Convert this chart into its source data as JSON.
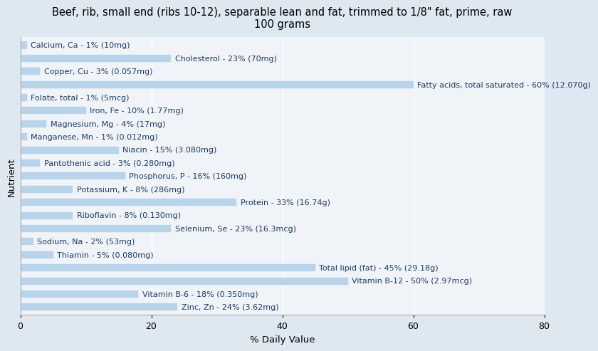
{
  "title": "Beef, rib, small end (ribs 10-12), separable lean and fat, trimmed to 1/8\" fat, prime, raw\n100 grams",
  "xlabel": "% Daily Value",
  "ylabel": "Nutrient",
  "xlim": [
    0,
    80
  ],
  "xticks": [
    0,
    20,
    40,
    60,
    80
  ],
  "background_color": "#dde8f0",
  "plot_background": "#f0f4f8",
  "bar_color": "#b8d4ea",
  "bar_edge_color": "#b8d4ea",
  "nutrients": [
    {
      "label": "Calcium, Ca - 1% (10mg)",
      "value": 1
    },
    {
      "label": "Cholesterol - 23% (70mg)",
      "value": 23
    },
    {
      "label": "Copper, Cu - 3% (0.057mg)",
      "value": 3
    },
    {
      "label": "Fatty acids, total saturated - 60% (12.070g)",
      "value": 60
    },
    {
      "label": "Folate, total - 1% (5mcg)",
      "value": 1
    },
    {
      "label": "Iron, Fe - 10% (1.77mg)",
      "value": 10
    },
    {
      "label": "Magnesium, Mg - 4% (17mg)",
      "value": 4
    },
    {
      "label": "Manganese, Mn - 1% (0.012mg)",
      "value": 1
    },
    {
      "label": "Niacin - 15% (3.080mg)",
      "value": 15
    },
    {
      "label": "Pantothenic acid - 3% (0.280mg)",
      "value": 3
    },
    {
      "label": "Phosphorus, P - 16% (160mg)",
      "value": 16
    },
    {
      "label": "Potassium, K - 8% (286mg)",
      "value": 8
    },
    {
      "label": "Protein - 33% (16.74g)",
      "value": 33
    },
    {
      "label": "Riboflavin - 8% (0.130mg)",
      "value": 8
    },
    {
      "label": "Selenium, Se - 23% (16.3mcg)",
      "value": 23
    },
    {
      "label": "Sodium, Na - 2% (53mg)",
      "value": 2
    },
    {
      "label": "Thiamin - 5% (0.080mg)",
      "value": 5
    },
    {
      "label": "Total lipid (fat) - 45% (29.18g)",
      "value": 45
    },
    {
      "label": "Vitamin B-12 - 50% (2.97mcg)",
      "value": 50
    },
    {
      "label": "Vitamin B-6 - 18% (0.350mg)",
      "value": 18
    },
    {
      "label": "Zinc, Zn - 24% (3.62mg)",
      "value": 24
    }
  ],
  "title_fontsize": 10.5,
  "axis_label_fontsize": 9.5,
  "tick_fontsize": 9,
  "bar_label_fontsize": 8,
  "label_color": "#1a3a6b",
  "grid_color": "#ffffff",
  "spine_color": "#aaaaaa"
}
